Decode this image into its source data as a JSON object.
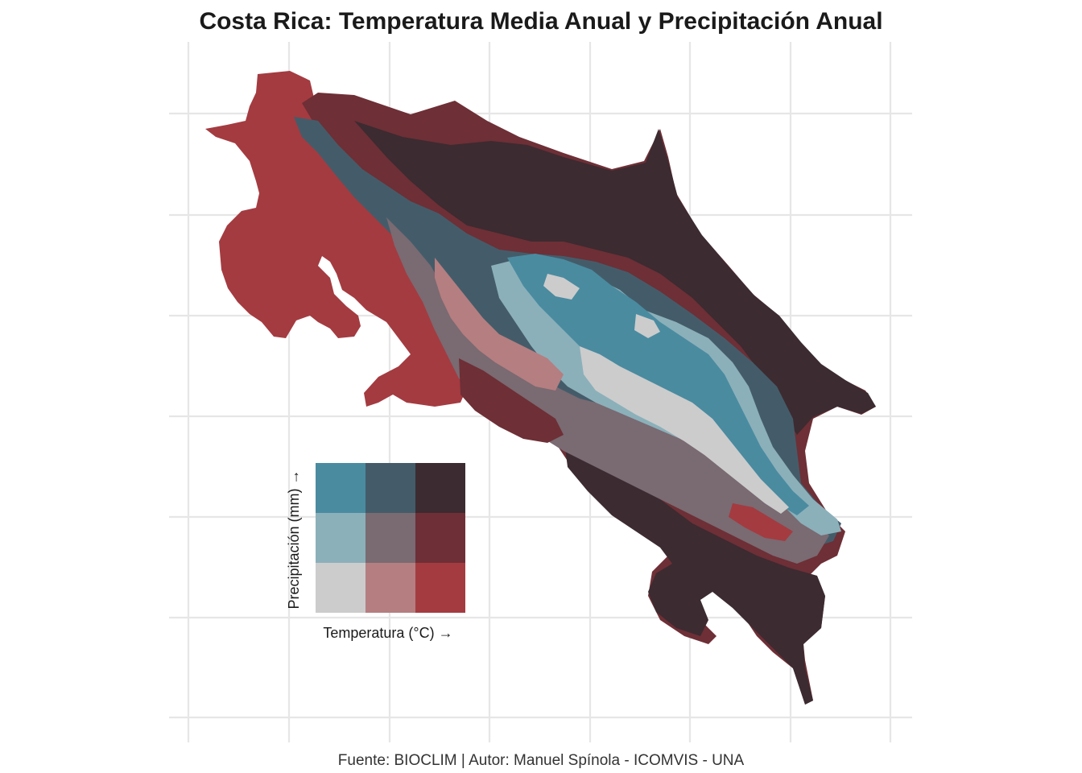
{
  "title": "Costa Rica: Temperatura Media Anual y Precipitación Anual",
  "caption": "Fuente: BIOCLIM | Autor: Manuel Spínola - ICOMVIS - UNA",
  "legend": {
    "x_label": "Temperatura (°C) →",
    "y_label": "Precipitación (mm) →",
    "palette_rows_top_to_bottom": [
      [
        "#4a8ba0",
        "#445c69",
        "#3c2b31"
      ],
      [
        "#8bb0ba",
        "#7a6a72",
        "#6e2f36"
      ],
      [
        "#cccccc",
        "#b57e80",
        "#a43b40"
      ]
    ]
  },
  "classes": {
    "low_low": "#cccccc",
    "mid_temp_low_prec": "#b57e80",
    "high_temp_low_prec": "#a43b40",
    "low_temp_mid_prec": "#8bb0ba",
    "mid_mid": "#7a6a72",
    "high_temp_mid_prec": "#6e2f36",
    "low_temp_high_prec": "#4a8ba0",
    "mid_temp_high_prec": "#445c69",
    "high_high": "#3c2b31"
  },
  "map": {
    "region": "Costa Rica",
    "grid": true
  }
}
